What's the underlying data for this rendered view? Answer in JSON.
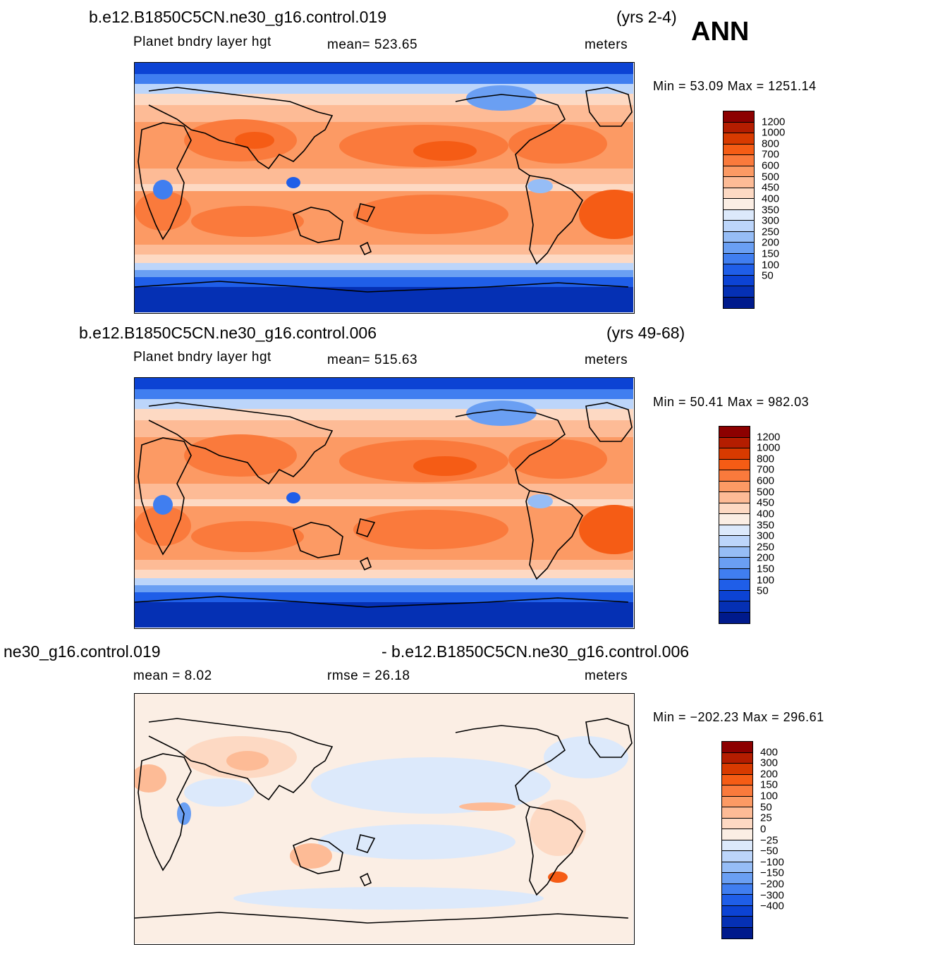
{
  "season": "ANN",
  "panels": [
    {
      "id": "p1",
      "case": "b.e12.B1850C5CN.ne30_g16.control.019",
      "years": "(yrs 2-4)",
      "variable": "Planet  bndry  layer  hgt",
      "mean_label": "mean=  523.65",
      "units": "meters",
      "minmax": "Min  =    53.09  Max  =  1251.14",
      "mean": 523.65,
      "min": 53.09,
      "max": 1251.14,
      "colorbar_key": "abs"
    },
    {
      "id": "p2",
      "case": "b.e12.B1850C5CN.ne30_g16.control.006",
      "years": "(yrs 49-68)",
      "variable": "Planet  bndry  layer  hgt",
      "mean_label": "mean=  515.63",
      "units": "meters",
      "minmax": "Min  =    50.41  Max  =  982.03",
      "mean": 515.63,
      "min": 50.41,
      "max": 982.03,
      "colorbar_key": "abs"
    },
    {
      "id": "p3",
      "case_left": "ne30_g16.control.019",
      "case_right": "- b.e12.B1850C5CN.ne30_g16.control.006",
      "mean_label": "mean  =      8.02",
      "rmse_label": "rmse  =    26.18",
      "units": "meters",
      "minmax": "Min  = −202.23  Max  =  296.61",
      "mean": 8.02,
      "rmse": 26.18,
      "min": -202.23,
      "max": 296.61,
      "colorbar_key": "diff"
    }
  ],
  "colorbars": {
    "abs": {
      "colors": [
        "#8c0000",
        "#b41d00",
        "#d83a00",
        "#f55c15",
        "#fa7a3c",
        "#fc9a64",
        "#fdbb96",
        "#fdd9c3",
        "#fbeee4",
        "#dce9fb",
        "#bcd5fa",
        "#96bdf6",
        "#6a9ff3",
        "#407ef0",
        "#1f5ee8",
        "#0c43d4",
        "#0530b4",
        "#001a8c"
      ],
      "labels": [
        "1200",
        "1000",
        "800",
        "700",
        "600",
        "500",
        "450",
        "400",
        "350",
        "300",
        "250",
        "200",
        "150",
        "100",
        "50"
      ]
    },
    "diff": {
      "colors": [
        "#8c0000",
        "#b41d00",
        "#d83a00",
        "#f55c15",
        "#fa7a3c",
        "#fc9a64",
        "#fdbb96",
        "#fdd9c3",
        "#fbeee4",
        "#dce9fb",
        "#bcd5fa",
        "#96bdf6",
        "#6a9ff3",
        "#407ef0",
        "#1f5ee8",
        "#0c43d4",
        "#0530b4",
        "#001a8c"
      ],
      "labels": [
        "400",
        "300",
        "200",
        "150",
        "100",
        "50",
        "25",
        "0",
        "−25",
        "−50",
        "−100",
        "−150",
        "−200",
        "−300",
        "−400"
      ]
    }
  }
}
